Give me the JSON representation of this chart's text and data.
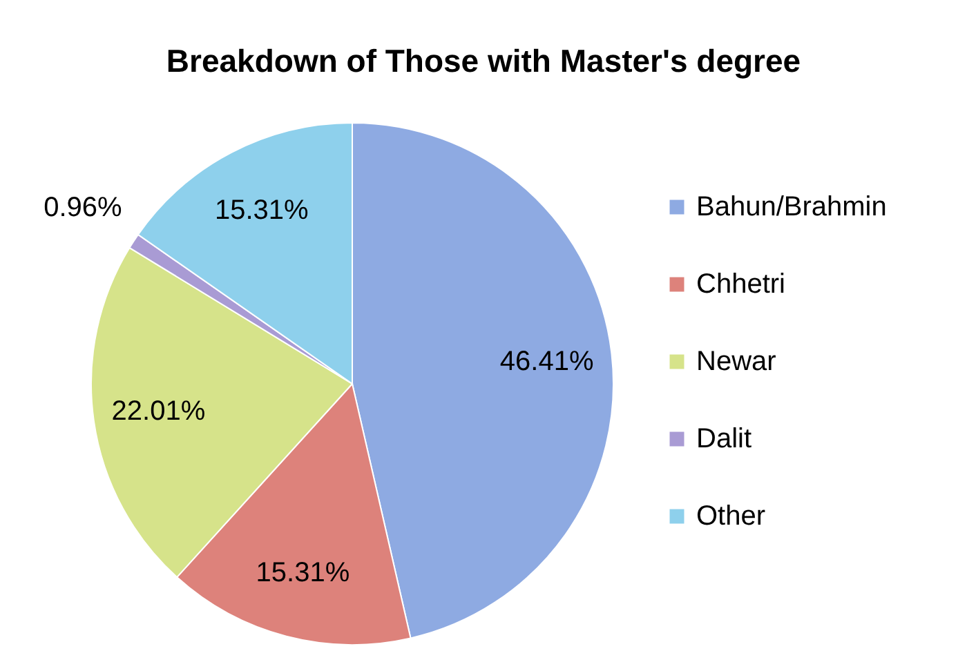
{
  "chart_data": {
    "type": "pie",
    "title": "Breakdown of Those with Master's degree",
    "categories": [
      "Bahun/Brahmin",
      "Chhetri",
      "Newar",
      "Dalit",
      "Other"
    ],
    "values": [
      46.41,
      15.31,
      22.01,
      0.96,
      15.31
    ],
    "colors": [
      "#8eaae2",
      "#dd827b",
      "#d6e38a",
      "#a99bd4",
      "#8ed0ec"
    ],
    "value_labels": [
      "46.41%",
      "15.31%",
      "22.01%",
      "0.96%",
      "15.31%"
    ],
    "legend": "right"
  }
}
